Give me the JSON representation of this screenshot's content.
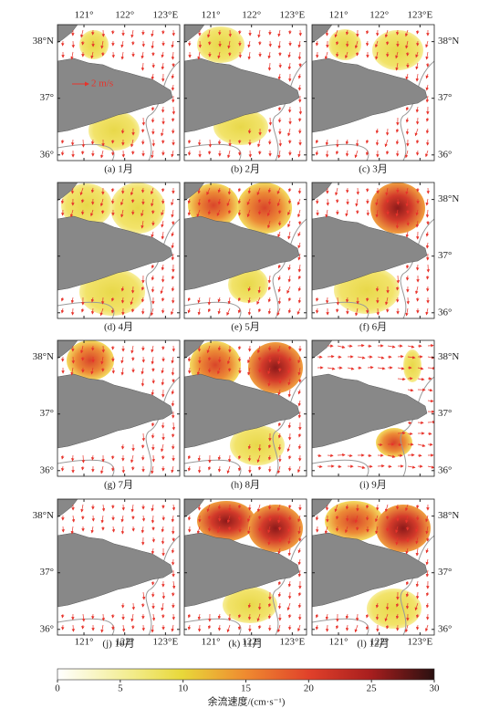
{
  "panels": [
    {
      "caption": "(a) 1月"
    },
    {
      "caption": "(b) 2月"
    },
    {
      "caption": "(c) 3月"
    },
    {
      "caption": "(d) 4月"
    },
    {
      "caption": "(e) 5月"
    },
    {
      "caption": "(f) 6月"
    },
    {
      "caption": "(g) 7月"
    },
    {
      "caption": "(h) 8月"
    },
    {
      "caption": "(i) 9月"
    },
    {
      "caption": "(j) 10月"
    },
    {
      "caption": "(k) 11月"
    },
    {
      "caption": "(l) 12月"
    }
  ],
  "scale_arrow_label": "2 m/s",
  "lon_lim": [
    120.35,
    123.35
  ],
  "lat_lim": [
    35.9,
    38.3
  ],
  "lon_ticks": [
    {
      "value": 121,
      "label": "121°"
    },
    {
      "value": 122,
      "label": "122°"
    },
    {
      "value": 123,
      "label": "123°E"
    }
  ],
  "lat_ticks": [
    {
      "value": 38,
      "label": "38°N"
    },
    {
      "value": 37,
      "label": "37°"
    },
    {
      "value": 36,
      "label": "36°"
    }
  ],
  "colorbar": {
    "label": "余流速度/(cm·s⁻¹)",
    "lim": [
      0,
      30
    ],
    "ticks": [
      0,
      5,
      10,
      15,
      20,
      25,
      30
    ]
  }
}
